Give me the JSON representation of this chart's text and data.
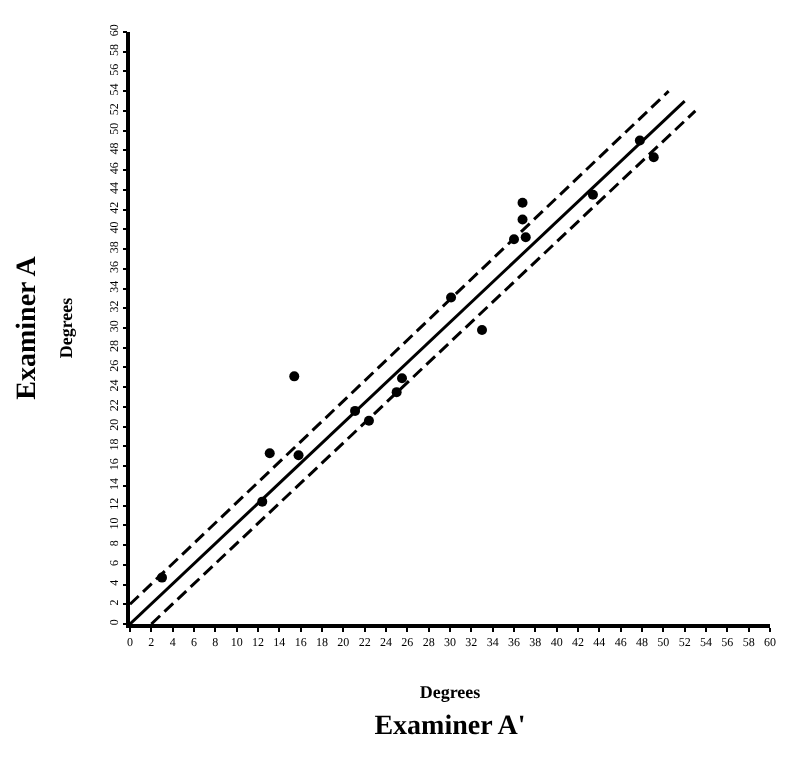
{
  "chart_data": {
    "type": "scatter",
    "xlabel": "Degrees\nExaminer A'",
    "ylabel": "Examiner A\nDegrees",
    "x": [
      3,
      12.4,
      13.1,
      15.4,
      15.8,
      21.1,
      22.4,
      25,
      25.5,
      33,
      30.1,
      36,
      37.1,
      36.8,
      36.8,
      43.4,
      47.8,
      49.1
    ],
    "series": [
      {
        "color": "#000000",
        "values": [
          4.7,
          12.4,
          17.3,
          25.1,
          17.1,
          21.6,
          20.6,
          23.5,
          24.9,
          29.8,
          33.1,
          39,
          39.2,
          41,
          42.7,
          43.5,
          49,
          47.3
        ],
        "marker": "circle"
      },
      {
        "type": "line",
        "x": [
          0,
          52
        ],
        "values": [
          0,
          53
        ],
        "color": "#000000",
        "line_style": "solid"
      },
      {
        "type": "line",
        "x": [
          0,
          50.5
        ],
        "values": [
          2,
          54
        ],
        "color": "#000000",
        "line_style": "dashed"
      },
      {
        "type": "line",
        "x": [
          2,
          53
        ],
        "values": [
          0,
          52
        ],
        "color": "#000000",
        "line_style": "dashed"
      }
    ],
    "xlim": [
      0,
      60
    ],
    "ylim": [
      0,
      60
    ],
    "xticks": [
      0,
      2,
      4,
      6,
      8,
      10,
      12,
      14,
      16,
      18,
      20,
      22,
      24,
      26,
      28,
      30,
      32,
      34,
      36,
      38,
      40,
      42,
      44,
      46,
      48,
      50,
      52,
      54,
      56,
      58,
      60
    ],
    "yticks": [
      0,
      2,
      4,
      6,
      8,
      10,
      12,
      14,
      16,
      18,
      20,
      22,
      24,
      26,
      28,
      30,
      32,
      34,
      36,
      38,
      40,
      42,
      44,
      46,
      48,
      50,
      52,
      54,
      56,
      58,
      60
    ]
  }
}
